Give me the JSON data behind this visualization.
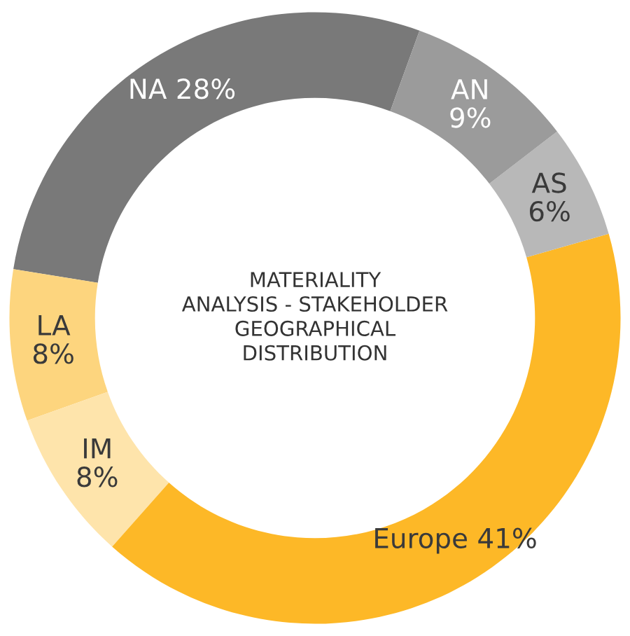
{
  "chart_data": {
    "type": "donut",
    "title": "MATERIALITY\nANALYSIS - STAKEHOLDER\nGEOGRAPHICAL\nDISTRIBUTION",
    "categories": [
      "NA",
      "LA",
      "IM",
      "Europe",
      "AS",
      "AN"
    ],
    "values": [
      28,
      8,
      8,
      41,
      6,
      9
    ],
    "value_labels": [
      "28%",
      "8%",
      "8%",
      "41%",
      "6%",
      "9%"
    ],
    "colors": [
      "#797979",
      "#fdd57e",
      "#fee4ab",
      "#fdb827",
      "#b8b8b8",
      "#9b9b9b"
    ]
  }
}
